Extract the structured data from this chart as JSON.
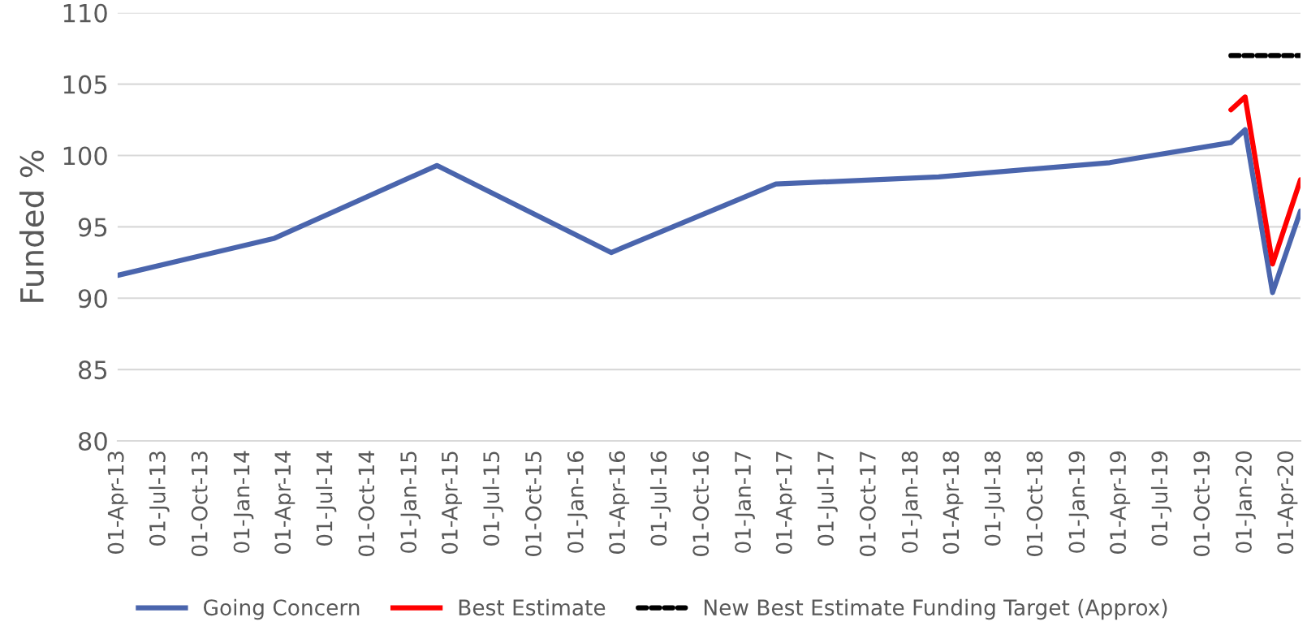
{
  "chart_data": {
    "type": "line",
    "ylabel": "Funded %",
    "xlim": [
      "2013-04-01",
      "2020-04-30"
    ],
    "ylim": [
      80,
      110
    ],
    "yticks": [
      80,
      85,
      90,
      95,
      100,
      105,
      110
    ],
    "xticks": [
      {
        "value": "2013-04-01",
        "label": "01-Apr-13"
      },
      {
        "value": "2013-07-01",
        "label": "01-Jul-13"
      },
      {
        "value": "2013-10-01",
        "label": "01-Oct-13"
      },
      {
        "value": "2014-01-01",
        "label": "01-Jan-14"
      },
      {
        "value": "2014-04-01",
        "label": "01-Apr-14"
      },
      {
        "value": "2014-07-01",
        "label": "01-Jul-14"
      },
      {
        "value": "2014-10-01",
        "label": "01-Oct-14"
      },
      {
        "value": "2015-01-01",
        "label": "01-Jan-15"
      },
      {
        "value": "2015-04-01",
        "label": "01-Apr-15"
      },
      {
        "value": "2015-07-01",
        "label": "01-Jul-15"
      },
      {
        "value": "2015-10-01",
        "label": "01-Oct-15"
      },
      {
        "value": "2016-01-01",
        "label": "01-Jan-16"
      },
      {
        "value": "2016-04-01",
        "label": "01-Apr-16"
      },
      {
        "value": "2016-07-01",
        "label": "01-Jul-16"
      },
      {
        "value": "2016-10-01",
        "label": "01-Oct-16"
      },
      {
        "value": "2017-01-01",
        "label": "01-Jan-17"
      },
      {
        "value": "2017-04-01",
        "label": "01-Apr-17"
      },
      {
        "value": "2017-07-01",
        "label": "01-Jul-17"
      },
      {
        "value": "2017-10-01",
        "label": "01-Oct-17"
      },
      {
        "value": "2018-01-01",
        "label": "01-Jan-18"
      },
      {
        "value": "2018-04-01",
        "label": "01-Apr-18"
      },
      {
        "value": "2018-07-01",
        "label": "01-Jul-18"
      },
      {
        "value": "2018-10-01",
        "label": "01-Oct-18"
      },
      {
        "value": "2019-01-01",
        "label": "01-Jan-19"
      },
      {
        "value": "2019-04-01",
        "label": "01-Apr-19"
      },
      {
        "value": "2019-07-01",
        "label": "01-Jul-19"
      },
      {
        "value": "2019-10-01",
        "label": "01-Oct-19"
      },
      {
        "value": "2020-01-01",
        "label": "01-Jan-20"
      },
      {
        "value": "2020-04-01",
        "label": "01-Apr-20"
      }
    ],
    "grid": "y",
    "legend": "bottom",
    "marker": "none",
    "series": [
      {
        "name": "Going Concern",
        "color": "#4a65ad",
        "line_style": "solid",
        "x": [
          "2013-04-01",
          "2014-03-10",
          "2015-02-28",
          "2016-03-15",
          "2017-03-10",
          "2018-03-01",
          "2019-03-10",
          "2019-11-30",
          "2019-12-31",
          "2020-02-29",
          "2020-04-30"
        ],
        "values": [
          91.6,
          94.2,
          99.3,
          93.2,
          98.0,
          98.5,
          99.5,
          100.9,
          101.8,
          90.4,
          96.1
        ]
      },
      {
        "name": "Best Estimate",
        "color": "#ff0000",
        "line_style": "solid",
        "x": [
          "2019-11-30",
          "2019-12-31",
          "2020-02-29",
          "2020-04-30"
        ],
        "values": [
          103.2,
          104.1,
          92.4,
          98.3
        ]
      },
      {
        "name": "New Best Estimate Funding Target (Approx)",
        "color": "#000000",
        "line_style": "dashed",
        "x": [
          "2019-11-30",
          "2020-04-30"
        ],
        "values": [
          107,
          107
        ]
      }
    ]
  }
}
